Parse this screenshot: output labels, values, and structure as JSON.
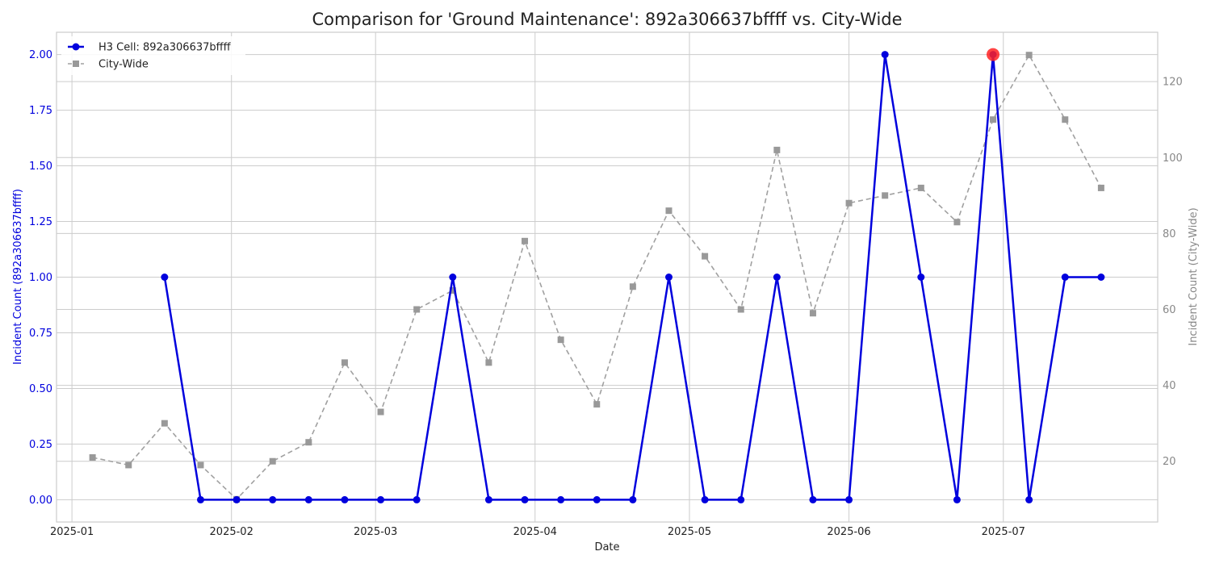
{
  "chart_data": {
    "type": "line",
    "title": "Comparison for 'Ground Maintenance': 892a306637bffff vs. City-Wide",
    "xlabel": "Date",
    "ylabel_left": "Incident Count (892a306637bffff)",
    "ylabel_right": "Incident Count (City-Wide)",
    "x_ticks": [
      "2025-01",
      "2025-02",
      "2025-03",
      "2025-04",
      "2025-05",
      "2025-06",
      "2025-07"
    ],
    "x_tick_dates": [
      "2025-01-01",
      "2025-02-01",
      "2025-03-01",
      "2025-04-01",
      "2025-05-01",
      "2025-06-01",
      "2025-07-01"
    ],
    "x_range": [
      "2024-12-29",
      "2025-07-31"
    ],
    "y_left_ticks": [
      "0.00",
      "0.25",
      "0.50",
      "0.75",
      "1.00",
      "1.25",
      "1.50",
      "1.75",
      "2.00"
    ],
    "y_left_range": [
      -0.1,
      2.1
    ],
    "y_right_ticks": [
      "20",
      "40",
      "60",
      "80",
      "100",
      "120"
    ],
    "y_right_range": [
      4,
      133
    ],
    "grid": true,
    "legend_position": "top-left",
    "series": [
      {
        "name": "H3 Cell: 892a306637bffff",
        "axis": "left",
        "color": "#0000dd",
        "style": "solid",
        "marker": "circle",
        "x": [
          "2025-01-19",
          "2025-01-26",
          "2025-02-02",
          "2025-02-09",
          "2025-02-16",
          "2025-02-23",
          "2025-03-02",
          "2025-03-09",
          "2025-03-16",
          "2025-03-23",
          "2025-03-30",
          "2025-04-06",
          "2025-04-13",
          "2025-04-20",
          "2025-04-27",
          "2025-05-04",
          "2025-05-11",
          "2025-05-18",
          "2025-05-25",
          "2025-06-01",
          "2025-06-08",
          "2025-06-15",
          "2025-06-22",
          "2025-06-29",
          "2025-07-06",
          "2025-07-13",
          "2025-07-20"
        ],
        "values": [
          1,
          0,
          0,
          0,
          0,
          0,
          0,
          0,
          1,
          0,
          0,
          0,
          0,
          0,
          1,
          0,
          0,
          1,
          0,
          0,
          2,
          1,
          0,
          2,
          0,
          1,
          1
        ]
      },
      {
        "name": "City-Wide",
        "axis": "right",
        "color": "#a0a0a0",
        "style": "dashed",
        "marker": "square",
        "x": [
          "2025-01-05",
          "2025-01-12",
          "2025-01-19",
          "2025-01-26",
          "2025-02-02",
          "2025-02-09",
          "2025-02-16",
          "2025-02-23",
          "2025-03-02",
          "2025-03-09",
          "2025-03-16",
          "2025-03-23",
          "2025-03-30",
          "2025-04-06",
          "2025-04-13",
          "2025-04-20",
          "2025-04-27",
          "2025-05-04",
          "2025-05-11",
          "2025-05-18",
          "2025-05-25",
          "2025-06-01",
          "2025-06-08",
          "2025-06-15",
          "2025-06-22",
          "2025-06-29",
          "2025-07-06",
          "2025-07-13",
          "2025-07-20"
        ],
        "values": [
          21,
          19,
          30,
          19,
          10,
          20,
          25,
          46,
          33,
          60,
          65,
          46,
          78,
          52,
          35,
          66,
          86,
          74,
          60,
          102,
          59,
          88,
          90,
          92,
          83,
          110,
          127,
          110,
          92
        ]
      }
    ],
    "highlight": {
      "series": 0,
      "x": "2025-06-29",
      "value": 2,
      "color": "#ff2222"
    }
  }
}
